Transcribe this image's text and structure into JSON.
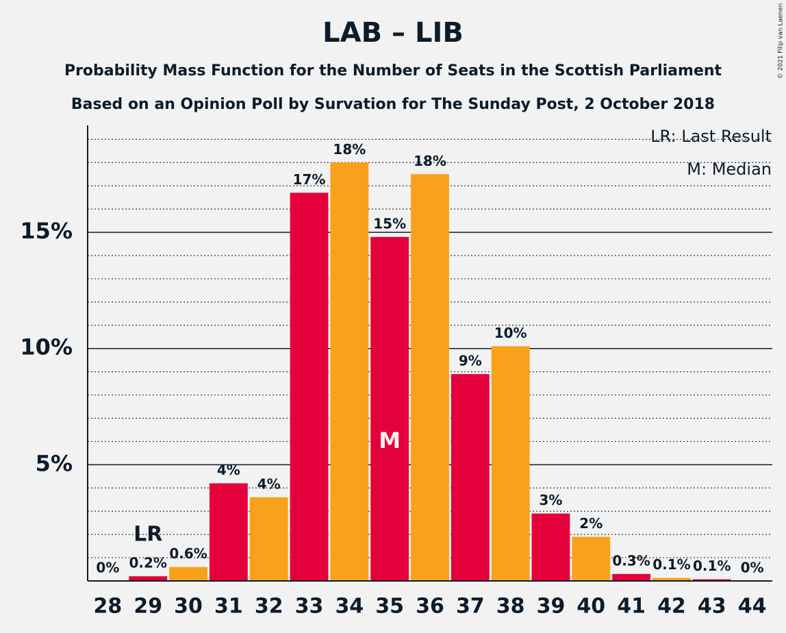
{
  "chart_data": {
    "type": "bar",
    "title": "LAB – LIB",
    "subtitle": [
      "Probability Mass Function for the Number of Seats in the Scottish Parliament",
      "Based on an Opinion Poll by Survation for The Sunday Post, 2 October 2018"
    ],
    "copyright": "© 2021 Filip van Laenen",
    "categories": [
      "28",
      "29",
      "30",
      "31",
      "32",
      "33",
      "34",
      "35",
      "36",
      "37",
      "38",
      "39",
      "40",
      "41",
      "42",
      "43",
      "44"
    ],
    "values": [
      0,
      0.2,
      0.6,
      4.2,
      3.6,
      16.7,
      18.0,
      14.8,
      17.5,
      8.9,
      10.1,
      2.9,
      1.9,
      0.3,
      0.13,
      0.07,
      0
    ],
    "value_labels": [
      "0%",
      "0.2%",
      "0.6%",
      "4%",
      "4%",
      "17%",
      "18%",
      "15%",
      "18%",
      "9%",
      "10%",
      "3%",
      "2%",
      "0.3%",
      "0.1%",
      "0.1%",
      "0%"
    ],
    "colors": [
      "#f9a11b",
      "#e4003b"
    ],
    "ylim": [
      0,
      19.6
    ],
    "yticks": [
      {
        "value": 5,
        "label": "5%"
      },
      {
        "value": 10,
        "label": "10%"
      },
      {
        "value": 15,
        "label": "15%"
      }
    ],
    "minor_yticks": [
      1,
      2,
      3,
      4,
      6,
      7,
      8,
      9,
      11,
      12,
      13,
      14,
      16,
      17,
      18,
      19
    ],
    "grid": true,
    "annotations": [
      {
        "label": "LR",
        "category": "29"
      },
      {
        "label": "M",
        "category": "35"
      }
    ],
    "legend_notes": [
      "LR: Last Result",
      "M: Median"
    ]
  }
}
